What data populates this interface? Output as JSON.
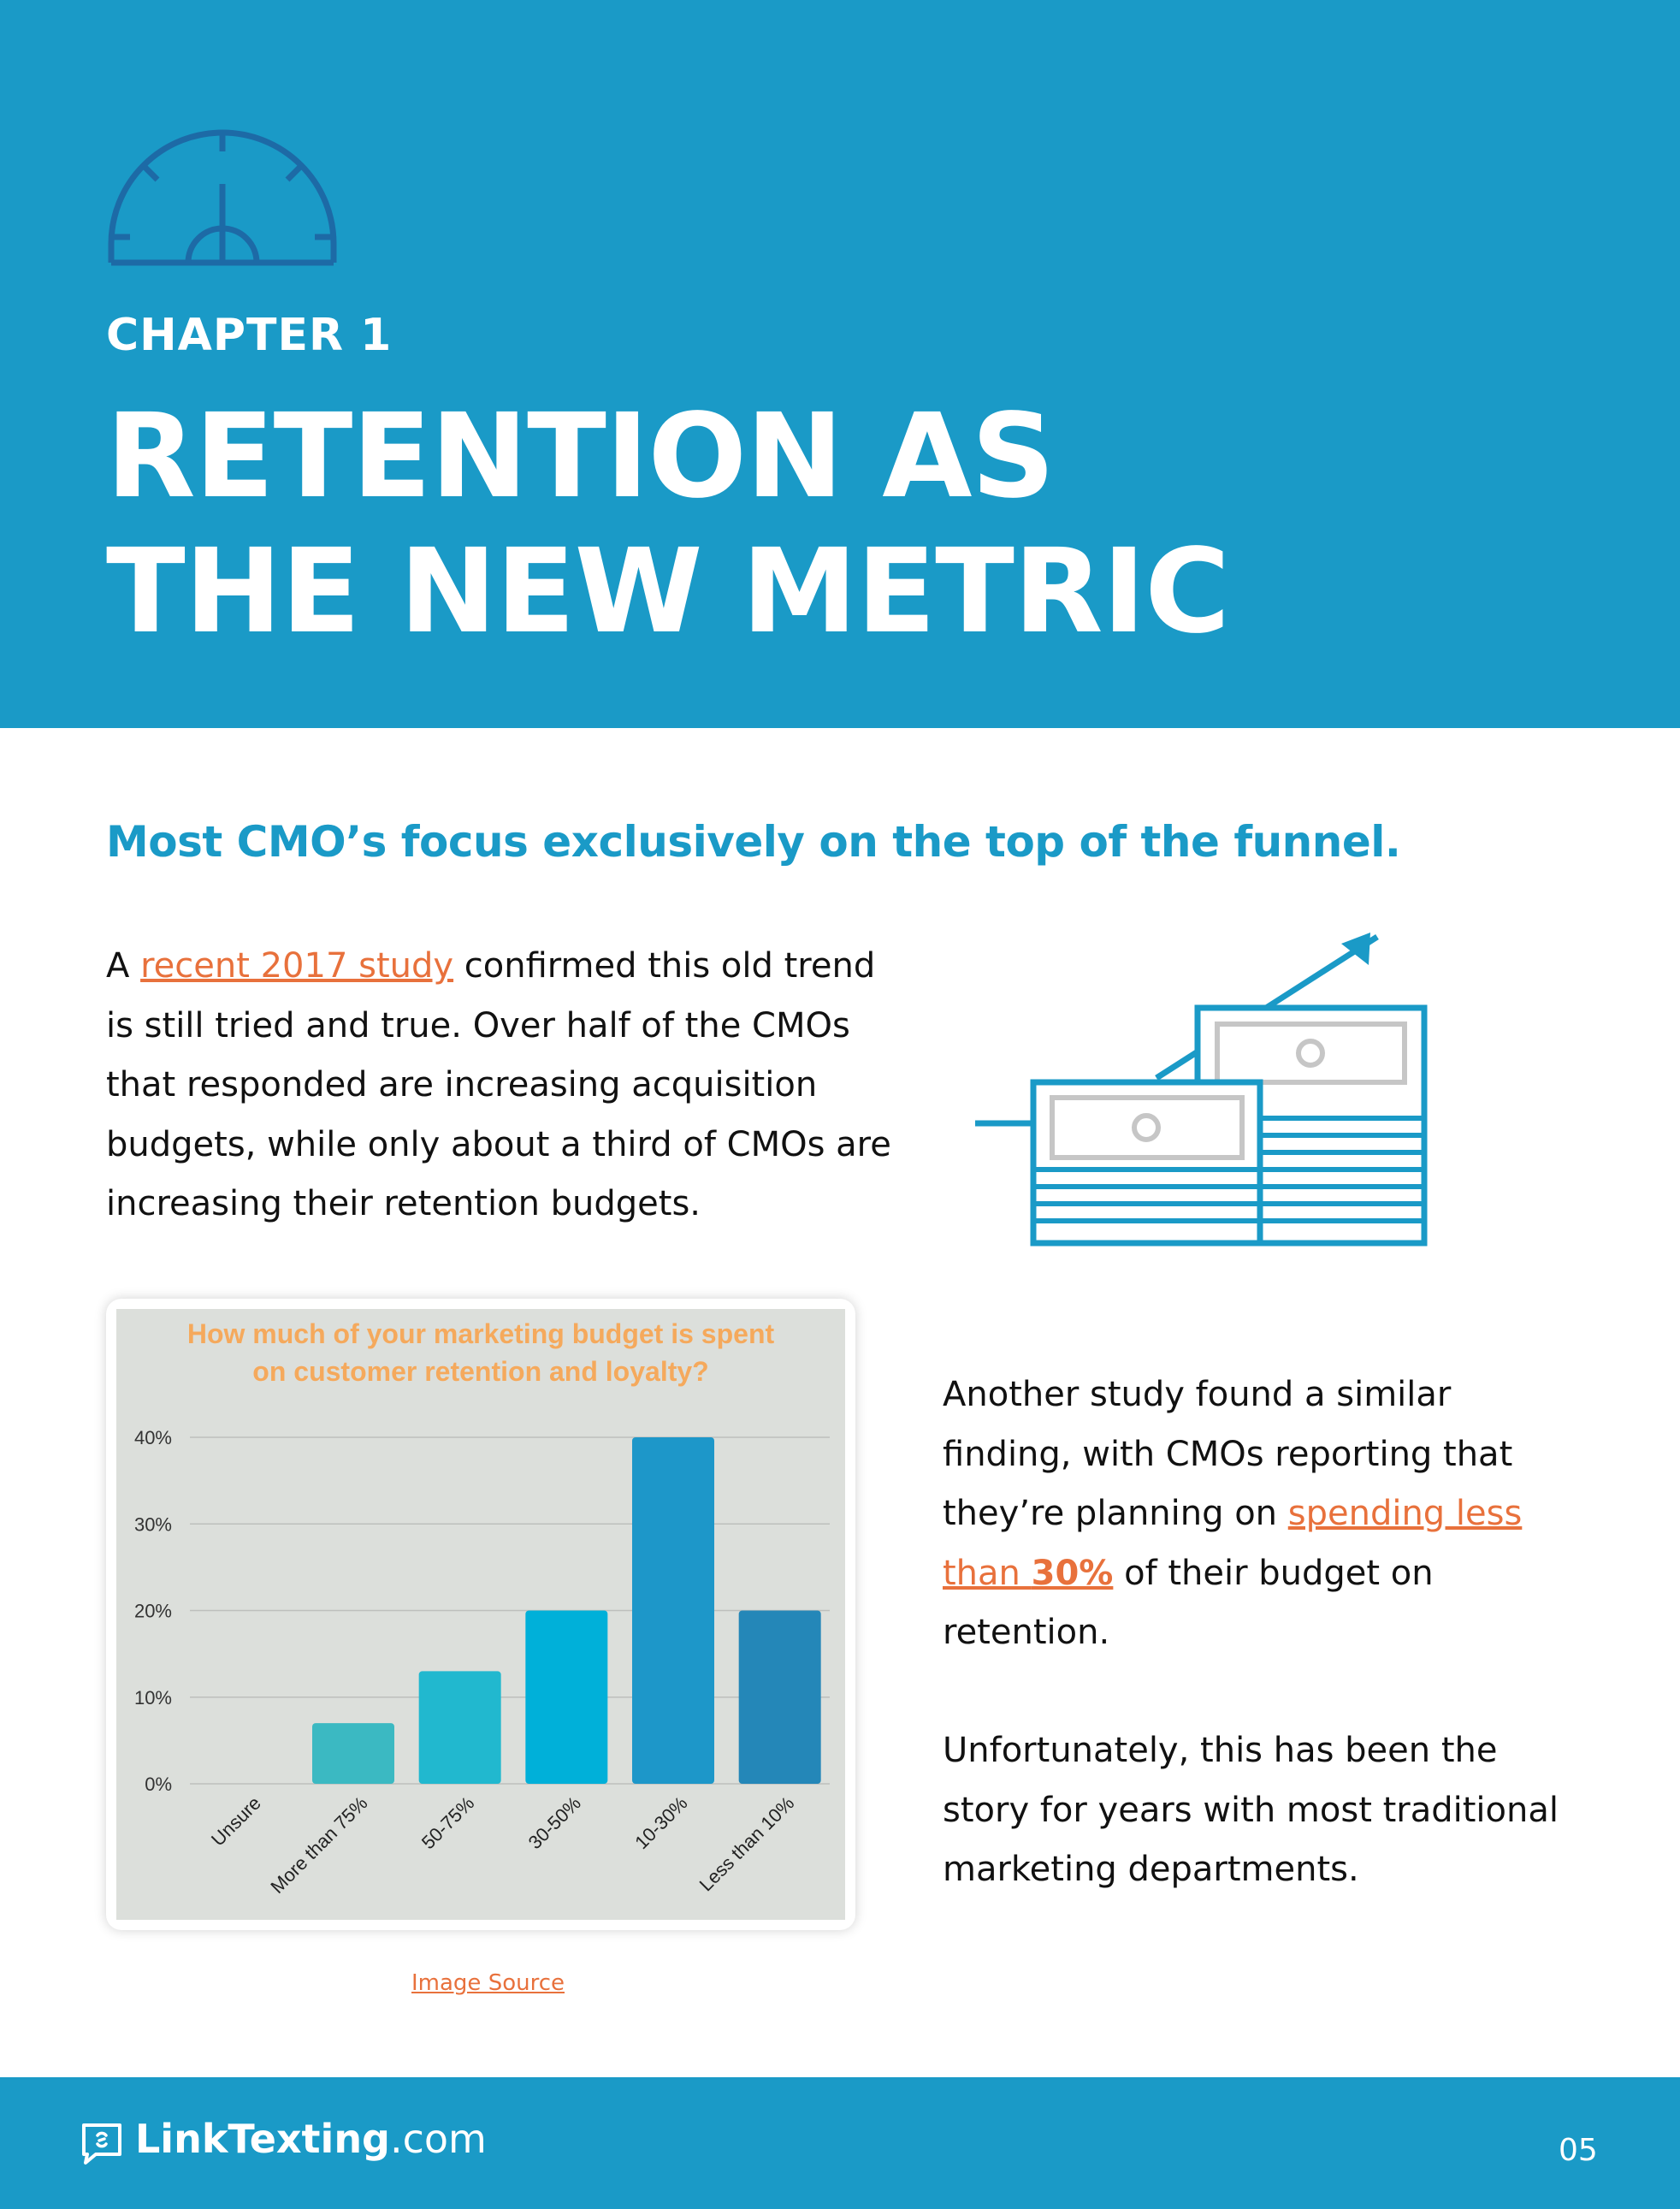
{
  "header": {
    "chapter": "CHAPTER 1",
    "title_line1": "RETENTION AS",
    "title_line2": "THE NEW METRIC",
    "icon": "gauge-icon"
  },
  "subhead": "Most CMO’s focus exclusively on the top of the funnel.",
  "paragraph1": {
    "prefix": "A ",
    "link": "recent 2017 study",
    "rest": " confirmed this old trend is still tried and true. Over half of the CMOs that responded are increasing acquisition budgets, while only about a third of CMOs are increasing their retention budgets."
  },
  "illustration": "money-growth-icon",
  "chart_data": {
    "type": "bar",
    "title": "How much of your marketing budget is spent on customer retention and loyalty?",
    "title_lines": [
      "How much of your marketing budget is spent",
      "on customer retention and loyalty?"
    ],
    "categories": [
      "Unsure",
      "More than 75%",
      "50-75%",
      "30-50%",
      "10-30%",
      "Less than 10%"
    ],
    "values": [
      0,
      7,
      13,
      20,
      40,
      20
    ],
    "colors": [
      "#3bb9c2",
      "#3bb9c2",
      "#21b8cf",
      "#00b0d9",
      "#1d97c9",
      "#2487b8"
    ],
    "yticks": [
      "0%",
      "10%",
      "20%",
      "30%",
      "40%"
    ],
    "ylim": [
      0,
      40
    ],
    "grid": true,
    "xlabel": "",
    "ylabel": "",
    "title_color": "#f5a95c",
    "background": "#dcdfdb"
  },
  "image_source": "Image Source",
  "paragraph2": {
    "prefix": "Another study found a similar finding, with CMOs reporting that they’re planning on ",
    "link_a": "spending less than ",
    "link_b": "30%",
    "rest": " of their budget on retention."
  },
  "paragraph3": "Unfortunately, this has been the story for years with most traditional marketing departments.",
  "footer": {
    "logo_bold": "LinkTexting",
    "logo_light": ".com",
    "page_number": "05"
  },
  "colors": {
    "brand_blue": "#1a9ac7",
    "link_orange": "#e8713c"
  }
}
